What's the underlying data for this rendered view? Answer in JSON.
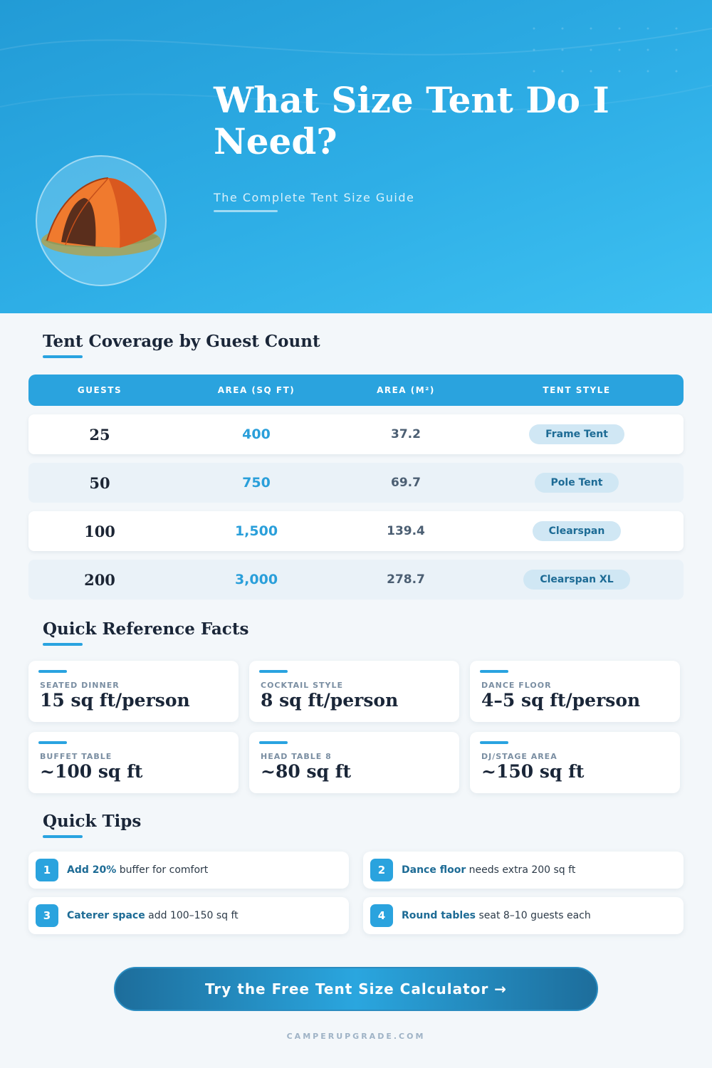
{
  "hero": {
    "title": "What Size Tent Do I Need?",
    "subtitle": "The Complete Tent Size Guide"
  },
  "coverage": {
    "heading": "Tent Coverage by Guest Count",
    "columns": [
      "GUESTS",
      "AREA (SQ FT)",
      "AREA (M²)",
      "TENT STYLE"
    ],
    "rows": [
      {
        "guests": "25",
        "sqft": "400",
        "m2": "37.2",
        "style": "Frame Tent"
      },
      {
        "guests": "50",
        "sqft": "750",
        "m2": "69.7",
        "style": "Pole Tent"
      },
      {
        "guests": "100",
        "sqft": "1,500",
        "m2": "139.4",
        "style": "Clearspan"
      },
      {
        "guests": "200",
        "sqft": "3,000",
        "m2": "278.7",
        "style": "Clearspan XL"
      }
    ]
  },
  "facts": {
    "heading": "Quick Reference Facts",
    "items": [
      {
        "label": "SEATED DINNER",
        "value": "15 sq ft/person"
      },
      {
        "label": "COCKTAIL STYLE",
        "value": "8 sq ft/person"
      },
      {
        "label": "DANCE FLOOR",
        "value": "4–5 sq ft/person"
      },
      {
        "label": "BUFFET TABLE",
        "value": "~100 sq ft"
      },
      {
        "label": "HEAD TABLE 8",
        "value": "~80 sq ft"
      },
      {
        "label": "DJ/STAGE AREA",
        "value": "~150 sq ft"
      }
    ]
  },
  "tips": {
    "heading": "Quick Tips",
    "items": [
      {
        "num": "1",
        "strong": "Add 20%",
        "text": " buffer for comfort"
      },
      {
        "num": "2",
        "strong": "Dance floor",
        "text": " needs extra 200 sq ft"
      },
      {
        "num": "3",
        "strong": "Caterer space",
        "text": " add 100–150 sq ft"
      },
      {
        "num": "4",
        "strong": "Round tables",
        "text": " seat 8–10 guests each"
      }
    ]
  },
  "cta": {
    "label": "Try the Free Tent Size Calculator →"
  },
  "footer": {
    "site": "CAMPERUPGRADE.COM"
  },
  "icons": {
    "hero_illustration": "tent-icon"
  },
  "colors": {
    "accent": "#2aa3de",
    "accent_dark": "#1d6b95",
    "heading": "#1a2638"
  }
}
